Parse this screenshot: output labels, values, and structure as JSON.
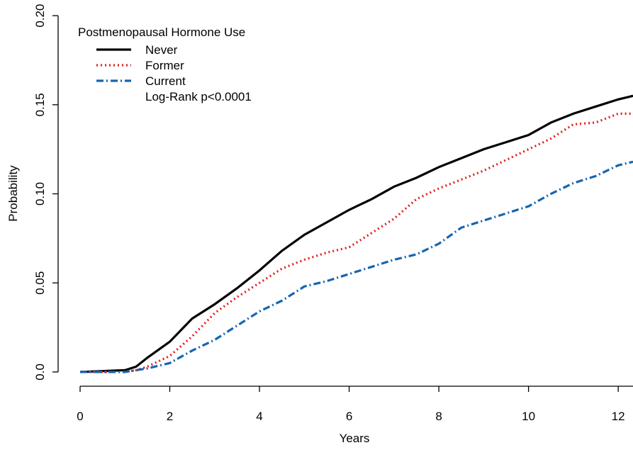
{
  "chart_data": {
    "type": "line",
    "legend_title": "Postmenopausal Hormone Use",
    "annotation": "Log-Rank p<0.0001",
    "xlabel": "Years",
    "ylabel": "Probability",
    "x": [
      0,
      1,
      1.25,
      1.5,
      2,
      2.5,
      3,
      3.5,
      4,
      4.5,
      5,
      5.5,
      6,
      6.5,
      7,
      7.5,
      8,
      8.5,
      9,
      9.5,
      10,
      10.5,
      11,
      11.5,
      12,
      12.33
    ],
    "series": [
      {
        "name": "Never",
        "color": "#000000",
        "dash": "none",
        "values": [
          0,
          0.001,
          0.003,
          0.008,
          0.017,
          0.03,
          0.038,
          0.047,
          0.057,
          0.068,
          0.077,
          0.084,
          0.091,
          0.097,
          0.104,
          0.109,
          0.115,
          0.12,
          0.125,
          0.129,
          0.133,
          0.14,
          0.145,
          0.149,
          0.153,
          0.155
        ]
      },
      {
        "name": "Former",
        "color": "#e0201c",
        "dash": "2,4",
        "values": [
          0,
          0,
          0.001,
          0.003,
          0.009,
          0.02,
          0.033,
          0.042,
          0.05,
          0.058,
          0.063,
          0.067,
          0.07,
          0.078,
          0.086,
          0.097,
          0.103,
          0.108,
          0.113,
          0.119,
          0.125,
          0.131,
          0.139,
          0.14,
          0.145,
          0.145
        ]
      },
      {
        "name": "Current",
        "color": "#1565b0",
        "dash": "10,4,2,4",
        "values": [
          0,
          0,
          0.001,
          0.002,
          0.005,
          0.012,
          0.018,
          0.026,
          0.034,
          0.04,
          0.048,
          0.051,
          0.055,
          0.059,
          0.063,
          0.066,
          0.072,
          0.081,
          0.085,
          0.089,
          0.093,
          0.1,
          0.106,
          0.11,
          0.116,
          0.118
        ]
      }
    ],
    "xlim": [
      -0.49,
      12.33
    ],
    "ylim": [
      -0.008,
      0.208
    ],
    "xticks": [
      0,
      2,
      4,
      6,
      8,
      10,
      12
    ],
    "yticks": [
      {
        "value": 0,
        "label": "0.0"
      },
      0.05,
      {
        "value": 0.1,
        "label": "0.10"
      },
      0.15,
      {
        "value": 0.2,
        "label": "0.20"
      }
    ]
  }
}
